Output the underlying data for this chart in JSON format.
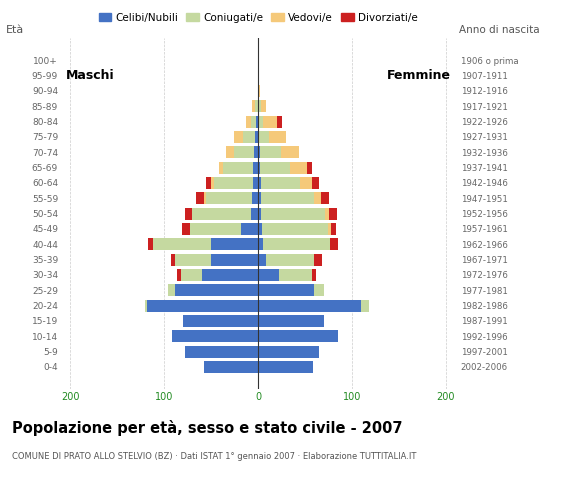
{
  "age_groups": [
    "100+",
    "95-99",
    "90-94",
    "85-89",
    "80-84",
    "75-79",
    "70-74",
    "65-69",
    "60-64",
    "55-59",
    "50-54",
    "45-49",
    "40-44",
    "35-39",
    "30-34",
    "25-29",
    "20-24",
    "15-19",
    "10-14",
    "5-9",
    "0-4"
  ],
  "birth_years": [
    "1906 o prima",
    "1907-1911",
    "1912-1916",
    "1917-1921",
    "1922-1926",
    "1927-1931",
    "1932-1936",
    "1937-1941",
    "1942-1946",
    "1947-1951",
    "1952-1956",
    "1957-1961",
    "1962-1966",
    "1967-1971",
    "1972-1976",
    "1977-1981",
    "1982-1986",
    "1987-1991",
    "1992-1996",
    "1997-2001",
    "2002-2006"
  ],
  "males_celibi": [
    0,
    0,
    0,
    0,
    2,
    3,
    4,
    5,
    5,
    6,
    8,
    18,
    50,
    50,
    60,
    88,
    118,
    80,
    92,
    78,
    58
  ],
  "males_coniugati": [
    0,
    0,
    0,
    3,
    6,
    13,
    22,
    32,
    42,
    50,
    62,
    55,
    62,
    38,
    22,
    8,
    2,
    0,
    0,
    0,
    0
  ],
  "males_vedovi": [
    0,
    0,
    0,
    3,
    5,
    10,
    8,
    5,
    3,
    2,
    0,
    0,
    0,
    0,
    0,
    0,
    0,
    0,
    0,
    0,
    0
  ],
  "males_divorziati": [
    0,
    0,
    0,
    0,
    0,
    0,
    0,
    0,
    5,
    8,
    8,
    8,
    5,
    5,
    4,
    0,
    0,
    0,
    0,
    0,
    0
  ],
  "females_nubili": [
    0,
    0,
    0,
    0,
    0,
    0,
    2,
    2,
    3,
    3,
    3,
    4,
    5,
    8,
    22,
    60,
    110,
    70,
    85,
    65,
    58
  ],
  "females_coniugate": [
    0,
    0,
    0,
    3,
    5,
    12,
    22,
    32,
    42,
    56,
    68,
    70,
    72,
    52,
    35,
    10,
    8,
    0,
    0,
    0,
    0
  ],
  "females_vedove": [
    0,
    0,
    2,
    5,
    15,
    18,
    20,
    18,
    12,
    8,
    5,
    4,
    0,
    0,
    0,
    0,
    0,
    0,
    0,
    0,
    0
  ],
  "females_divorziate": [
    0,
    0,
    0,
    0,
    5,
    0,
    0,
    5,
    8,
    8,
    8,
    5,
    8,
    8,
    5,
    0,
    0,
    0,
    0,
    0,
    0
  ],
  "color_celibi": "#4472c4",
  "color_coniugati": "#c5d9a0",
  "color_vedovi": "#f5c97a",
  "color_divorziati": "#cc2020",
  "xlim": 210,
  "xticks": [
    -200,
    -100,
    0,
    100,
    200
  ],
  "xticklabels": [
    "200",
    "100",
    "0",
    "100",
    "200"
  ],
  "title": "Popolazione per età, sesso e stato civile - 2007",
  "subtitle": "COMUNE DI PRATO ALLO STELVIO (BZ) · Dati ISTAT 1° gennaio 2007 · Elaborazione TUTTITALIA.IT",
  "label_maschi": "Maschi",
  "label_femmine": "Femmine",
  "ylabel_eta": "Età",
  "ylabel_anno": "Anno di nascita",
  "legend_labels": [
    "Celibi/Nubili",
    "Coniugati/e",
    "Vedovi/e",
    "Divorziati/e"
  ]
}
